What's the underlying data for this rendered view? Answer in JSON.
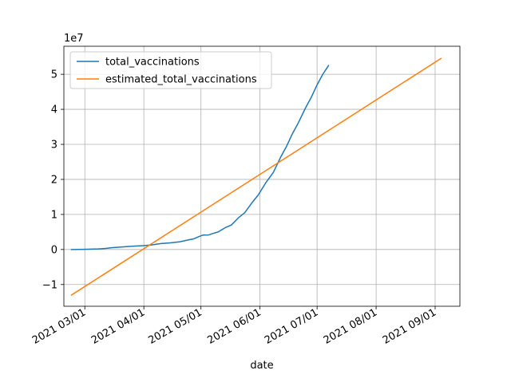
{
  "chart_data": {
    "type": "line",
    "title": "",
    "xlabel": "date",
    "ylabel": "",
    "y_offset_label": "1e7",
    "grid": true,
    "legend_position": "upper-left",
    "xlim": [
      "2021-02-18",
      "2021-09-14"
    ],
    "ylim": [
      -16200000,
      58000000
    ],
    "x_ticks": [
      {
        "date": "2021-03-01",
        "label": "2021 03/01"
      },
      {
        "date": "2021-04-01",
        "label": "2021 04/01"
      },
      {
        "date": "2021-05-01",
        "label": "2021 05/01"
      },
      {
        "date": "2021-06-01",
        "label": "2021 06/01"
      },
      {
        "date": "2021-07-01",
        "label": "2021 07/01"
      },
      {
        "date": "2021-08-01",
        "label": "2021 08/01"
      },
      {
        "date": "2021-09-01",
        "label": "2021 09/01"
      }
    ],
    "y_ticks": [
      {
        "value": -10000000,
        "label": "−1"
      },
      {
        "value": 0,
        "label": "0"
      },
      {
        "value": 10000000,
        "label": "1"
      },
      {
        "value": 20000000,
        "label": "2"
      },
      {
        "value": 30000000,
        "label": "3"
      },
      {
        "value": 40000000,
        "label": "4"
      },
      {
        "value": 50000000,
        "label": "5"
      }
    ],
    "series": [
      {
        "name": "total_vaccinations",
        "color": "#1f77b4",
        "points": [
          [
            "2021-02-22",
            0
          ],
          [
            "2021-03-01",
            40000
          ],
          [
            "2021-03-08",
            150000
          ],
          [
            "2021-03-12",
            300000
          ],
          [
            "2021-03-15",
            500000
          ],
          [
            "2021-03-20",
            700000
          ],
          [
            "2021-03-25",
            900000
          ],
          [
            "2021-04-01",
            1100000
          ],
          [
            "2021-04-05",
            1300000
          ],
          [
            "2021-04-10",
            1700000
          ],
          [
            "2021-04-15",
            1900000
          ],
          [
            "2021-04-20",
            2200000
          ],
          [
            "2021-04-25",
            2800000
          ],
          [
            "2021-04-27",
            3000000
          ],
          [
            "2021-04-30",
            3700000
          ],
          [
            "2021-05-02",
            4100000
          ],
          [
            "2021-05-05",
            4150000
          ],
          [
            "2021-05-08",
            4700000
          ],
          [
            "2021-05-10",
            5000000
          ],
          [
            "2021-05-14",
            6300000
          ],
          [
            "2021-05-17",
            7000000
          ],
          [
            "2021-05-21",
            9200000
          ],
          [
            "2021-05-24",
            10500000
          ],
          [
            "2021-05-28",
            13500000
          ],
          [
            "2021-05-31",
            15500000
          ],
          [
            "2021-06-04",
            19000000
          ],
          [
            "2021-06-08",
            22000000
          ],
          [
            "2021-06-12",
            26500000
          ],
          [
            "2021-06-15",
            29500000
          ],
          [
            "2021-06-18",
            33000000
          ],
          [
            "2021-06-21",
            36000000
          ],
          [
            "2021-06-25",
            40500000
          ],
          [
            "2021-06-28",
            43500000
          ],
          [
            "2021-07-01",
            47000000
          ],
          [
            "2021-07-04",
            50000000
          ],
          [
            "2021-07-07",
            52500000
          ]
        ]
      },
      {
        "name": "estimated_total_vaccinations",
        "color": "#ff7f0e",
        "points": [
          [
            "2021-02-22",
            -13000000
          ],
          [
            "2021-09-04",
            54500000
          ]
        ]
      }
    ]
  }
}
